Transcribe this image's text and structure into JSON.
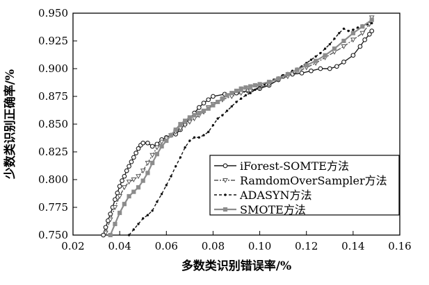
{
  "chart_data": {
    "type": "line",
    "xlabel": "多数类识别错误率/%",
    "ylabel": "少数类识别正确率/%",
    "xlim": [
      0.02,
      0.16
    ],
    "ylim": [
      0.75,
      0.95
    ],
    "xticks": [
      "0.02",
      "0.04",
      "0.06",
      "0.08",
      "0.10",
      "0.12",
      "0.14",
      "0.16"
    ],
    "yticks": [
      "0.750",
      "0.775",
      "0.800",
      "0.825",
      "0.850",
      "0.875",
      "0.900",
      "0.925",
      "0.950"
    ],
    "grid": false,
    "legend_position": "lower-right",
    "series": [
      {
        "name": "iForest-SOMTE方法",
        "color": "#1a1a1a",
        "marker": "circle-open",
        "dash": "solid",
        "x": [
          0.033,
          0.034,
          0.035,
          0.036,
          0.037,
          0.038,
          0.039,
          0.04,
          0.041,
          0.042,
          0.043,
          0.044,
          0.045,
          0.046,
          0.047,
          0.048,
          0.049,
          0.05,
          0.052,
          0.054,
          0.056,
          0.058,
          0.06,
          0.062,
          0.064,
          0.066,
          0.068,
          0.07,
          0.072,
          0.074,
          0.076,
          0.078,
          0.08,
          0.085,
          0.09,
          0.095,
          0.1,
          0.104,
          0.108,
          0.11,
          0.114,
          0.118,
          0.122,
          0.126,
          0.13,
          0.133,
          0.136,
          0.14,
          0.143,
          0.145,
          0.147,
          0.148
        ],
        "y": [
          0.75,
          0.757,
          0.763,
          0.769,
          0.775,
          0.782,
          0.788,
          0.794,
          0.799,
          0.803,
          0.808,
          0.812,
          0.816,
          0.82,
          0.824,
          0.828,
          0.831,
          0.833,
          0.833,
          0.83,
          0.832,
          0.836,
          0.838,
          0.84,
          0.841,
          0.845,
          0.85,
          0.855,
          0.86,
          0.865,
          0.869,
          0.872,
          0.875,
          0.877,
          0.878,
          0.88,
          0.882,
          0.885,
          0.89,
          0.893,
          0.895,
          0.896,
          0.898,
          0.9,
          0.9,
          0.902,
          0.906,
          0.912,
          0.92,
          0.926,
          0.931,
          0.934
        ]
      },
      {
        "name": "RamdomOverSampler方法",
        "color": "#555555",
        "marker": "triangle-down-open",
        "dash": "6,2,2,2",
        "x": [
          0.034,
          0.036,
          0.038,
          0.04,
          0.042,
          0.044,
          0.046,
          0.048,
          0.05,
          0.052,
          0.054,
          0.056,
          0.058,
          0.06,
          0.062,
          0.064,
          0.066,
          0.068,
          0.07,
          0.072,
          0.074,
          0.076,
          0.078,
          0.08,
          0.084,
          0.088,
          0.092,
          0.096,
          0.1,
          0.104,
          0.108,
          0.112,
          0.116,
          0.12,
          0.124,
          0.128,
          0.132,
          0.136,
          0.14,
          0.144,
          0.147,
          0.148
        ],
        "y": [
          0.752,
          0.764,
          0.775,
          0.785,
          0.793,
          0.798,
          0.8,
          0.803,
          0.808,
          0.815,
          0.822,
          0.829,
          0.834,
          0.837,
          0.84,
          0.843,
          0.846,
          0.849,
          0.852,
          0.855,
          0.858,
          0.861,
          0.865,
          0.868,
          0.872,
          0.875,
          0.878,
          0.88,
          0.883,
          0.886,
          0.89,
          0.893,
          0.897,
          0.901,
          0.905,
          0.91,
          0.915,
          0.92,
          0.926,
          0.932,
          0.94,
          0.946
        ]
      },
      {
        "name": "ADASYN方法",
        "color": "#111111",
        "marker": "dot",
        "dash": "4,3",
        "x": [
          0.044,
          0.046,
          0.048,
          0.05,
          0.052,
          0.054,
          0.056,
          0.058,
          0.06,
          0.062,
          0.064,
          0.066,
          0.068,
          0.07,
          0.072,
          0.074,
          0.076,
          0.078,
          0.08,
          0.082,
          0.084,
          0.086,
          0.088,
          0.09,
          0.092,
          0.094,
          0.096,
          0.098,
          0.1,
          0.102,
          0.104,
          0.106,
          0.108,
          0.11,
          0.112,
          0.114,
          0.116,
          0.118,
          0.12,
          0.122,
          0.124,
          0.126,
          0.128,
          0.13,
          0.132,
          0.134,
          0.136,
          0.138,
          0.14,
          0.142,
          0.144,
          0.146,
          0.148
        ],
        "y": [
          0.75,
          0.755,
          0.76,
          0.765,
          0.768,
          0.772,
          0.78,
          0.787,
          0.795,
          0.803,
          0.812,
          0.82,
          0.829,
          0.835,
          0.838,
          0.838,
          0.84,
          0.843,
          0.849,
          0.855,
          0.858,
          0.862,
          0.866,
          0.87,
          0.873,
          0.876,
          0.878,
          0.881,
          0.884,
          0.886,
          0.888,
          0.89,
          0.892,
          0.894,
          0.896,
          0.898,
          0.9,
          0.902,
          0.905,
          0.908,
          0.911,
          0.914,
          0.918,
          0.922,
          0.927,
          0.932,
          0.936,
          0.934,
          0.935,
          0.937,
          0.939,
          0.94,
          0.941
        ]
      },
      {
        "name": "SMOTE方法",
        "color": "#8c8c8c",
        "marker": "square",
        "dash": "solid",
        "x": [
          0.036,
          0.038,
          0.04,
          0.042,
          0.044,
          0.046,
          0.048,
          0.05,
          0.052,
          0.054,
          0.056,
          0.058,
          0.06,
          0.062,
          0.064,
          0.066,
          0.068,
          0.07,
          0.072,
          0.074,
          0.076,
          0.078,
          0.08,
          0.082,
          0.084,
          0.086,
          0.088,
          0.09,
          0.092,
          0.094,
          0.096,
          0.098,
          0.1,
          0.104,
          0.108,
          0.112,
          0.116,
          0.12,
          0.124,
          0.128,
          0.132,
          0.136,
          0.14,
          0.144,
          0.148
        ],
        "y": [
          0.75,
          0.76,
          0.77,
          0.778,
          0.785,
          0.789,
          0.793,
          0.799,
          0.806,
          0.815,
          0.823,
          0.83,
          0.835,
          0.84,
          0.845,
          0.85,
          0.853,
          0.856,
          0.858,
          0.86,
          0.862,
          0.864,
          0.867,
          0.87,
          0.873,
          0.876,
          0.878,
          0.88,
          0.882,
          0.883,
          0.884,
          0.885,
          0.886,
          0.888,
          0.891,
          0.895,
          0.899,
          0.903,
          0.907,
          0.912,
          0.918,
          0.925,
          0.932,
          0.938,
          0.944
        ]
      }
    ]
  }
}
